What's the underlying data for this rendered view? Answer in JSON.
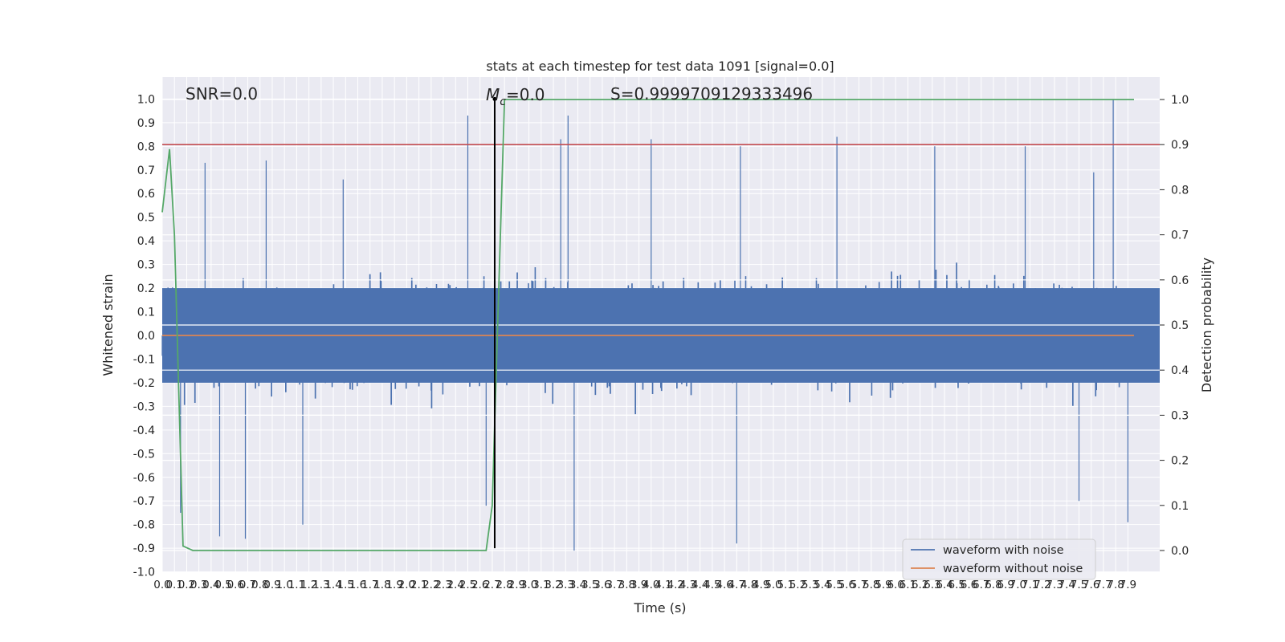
{
  "chart_data": {
    "type": "line",
    "title": "stats at each timestep for test data 1091 [signal=0.0]",
    "xlabel": "Time (s)",
    "ylabel": "Whitened strain",
    "y2label": "Detection probability",
    "xlim": [
      0.0,
      7.95
    ],
    "ylim": [
      -1.0,
      1.1
    ],
    "y2lim": [
      -0.05,
      1.05
    ],
    "x_ticks": [
      "0.0",
      "0.1",
      "0.2",
      "0.3",
      "0.4",
      "0.5",
      "0.6",
      "0.7",
      "0.8",
      "0.9",
      "1.0",
      "1.1",
      "1.2",
      "1.3",
      "1.4",
      "1.5",
      "1.6",
      "1.7",
      "1.8",
      "1.9",
      "2.0",
      "2.1",
      "2.2",
      "2.3",
      "2.4",
      "2.5",
      "2.6",
      "2.7",
      "2.8",
      "2.9",
      "3.0",
      "3.1",
      "3.2",
      "3.3",
      "3.4",
      "3.5",
      "3.6",
      "3.7",
      "3.8",
      "3.9",
      "4.0",
      "4.1",
      "4.2",
      "4.3",
      "4.4",
      "4.5",
      "4.6",
      "4.7",
      "4.8",
      "4.9",
      "5.0",
      "5.1",
      "5.2",
      "5.3",
      "5.4",
      "5.5",
      "5.6",
      "5.7",
      "5.8",
      "5.9",
      "6.0",
      "6.1",
      "6.2",
      "6.3",
      "6.4",
      "6.5",
      "6.6",
      "6.7",
      "6.8",
      "6.9",
      "7.0",
      "7.1",
      "7.2",
      "7.3",
      "7.4",
      "7.5",
      "7.6",
      "7.7",
      "7.8",
      "7.9"
    ],
    "y_ticks": [
      "1.0",
      "0.9",
      "0.8",
      "0.7",
      "0.6",
      "0.5",
      "0.4",
      "0.3",
      "0.2",
      "0.1",
      "0.0",
      "-0.1",
      "-0.2",
      "-0.3",
      "-0.4",
      "-0.5",
      "-0.6",
      "-0.7",
      "-0.8",
      "-0.9",
      "-1.0"
    ],
    "y2_ticks": [
      "1.0",
      "0.9",
      "0.8",
      "0.7",
      "0.6",
      "0.5",
      "0.4",
      "0.3",
      "0.2",
      "0.1",
      "0.0"
    ],
    "grid": true,
    "legend_position": "lower-right",
    "annotations": {
      "snr": "SNR=0.0",
      "mc": "M",
      "mc_sub": "c",
      "mc_value": "=0.0",
      "s": "S=0.9999709129333496"
    },
    "threshold_line": {
      "axis": "right",
      "value": 0.9,
      "color": "#c44e52"
    },
    "marker_line": {
      "x": 2.72,
      "y_bottom": -0.9,
      "y_top": 1.0,
      "color": "#000000"
    },
    "series": [
      {
        "name": "waveform with noise",
        "color": "#4c72b0",
        "axis": "left",
        "envelope_note": "dense noise trace",
        "peaks": [
          [
            0.35,
            0.73
          ],
          [
            0.85,
            0.74
          ],
          [
            1.48,
            0.66
          ],
          [
            2.5,
            0.93
          ],
          [
            3.32,
            0.93
          ],
          [
            3.26,
            0.83
          ],
          [
            4.0,
            0.83
          ],
          [
            4.73,
            0.8
          ],
          [
            5.52,
            0.84
          ],
          [
            6.32,
            0.8
          ],
          [
            7.06,
            0.8
          ],
          [
            7.78,
            1.0
          ],
          [
            7.62,
            0.69
          ]
        ],
        "troughs": [
          [
            0.15,
            -0.75
          ],
          [
            0.47,
            -0.85
          ],
          [
            0.68,
            -0.86
          ],
          [
            1.15,
            -0.8
          ],
          [
            2.65,
            -0.72
          ],
          [
            3.37,
            -0.91
          ],
          [
            4.7,
            -0.88
          ],
          [
            7.5,
            -0.7
          ],
          [
            7.9,
            -0.79
          ]
        ]
      },
      {
        "name": "waveform without noise",
        "color": "#dd8452",
        "axis": "left",
        "x": [
          0.0,
          7.95
        ],
        "y": [
          0.0,
          0.0
        ]
      },
      {
        "name": "Detection probability",
        "color": "#55a868",
        "axis": "right",
        "x": [
          0.0,
          0.06,
          0.1,
          0.17,
          0.25,
          2.0,
          2.65,
          2.7,
          2.75,
          2.8,
          7.95
        ],
        "y": [
          0.75,
          0.89,
          0.7,
          0.01,
          0.0,
          0.0,
          0.0,
          0.1,
          0.55,
          1.0,
          1.0
        ]
      }
    ],
    "legend": [
      "waveform with noise",
      "waveform without noise"
    ]
  }
}
